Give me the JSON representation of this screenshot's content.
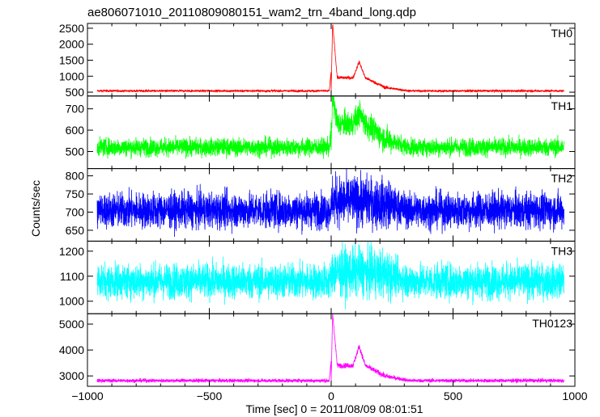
{
  "chart_data": {
    "type": "line",
    "title": "ae806071010_20110809080151_wam2_trn_4band_long.qdp",
    "xlabel": "Time [sec] 0 = 2011/08/09 08:01:51",
    "ylabel": "Counts/sec",
    "xlim": [
      -1000,
      1000
    ],
    "x_ticks": [
      -1000,
      -500,
      0,
      500,
      1000
    ],
    "x_tick_labels": [
      "−1000",
      "−500",
      "0",
      "500",
      "1000"
    ],
    "x_data_range": [
      -960,
      955
    ],
    "panels": [
      {
        "name": "TH0",
        "color": "#ff0000",
        "ylim": [
          380,
          2650
        ],
        "y_ticks": [
          500,
          1000,
          1500,
          2000,
          2500
        ],
        "y_tick_labels": [
          "500",
          "1000",
          "1500",
          "2000",
          "2500"
        ],
        "baseline": 540,
        "noise": 25,
        "burst": {
          "peak": 2650,
          "plateau": 950,
          "bump": 1450,
          "tail": 650
        }
      },
      {
        "name": "TH1",
        "color": "#00ff00",
        "ylim": [
          420,
          760
        ],
        "y_ticks": [
          500,
          600,
          700
        ],
        "y_tick_labels": [
          "500",
          "600",
          "700"
        ],
        "baseline": 520,
        "noise": 30,
        "burst": {
          "peak": 760,
          "plateau": 630,
          "bump": 680,
          "tail": 560
        }
      },
      {
        "name": "TH2",
        "color": "#0000ff",
        "ylim": [
          620,
          820
        ],
        "y_ticks": [
          650,
          700,
          750,
          800
        ],
        "y_tick_labels": [
          "650",
          "700",
          "750",
          "800"
        ],
        "baseline": 705,
        "noise": 35,
        "burst": {
          "peak": 735,
          "plateau": 730,
          "bump": 730,
          "tail": 722
        }
      },
      {
        "name": "TH3",
        "color": "#00ffff",
        "ylim": [
          950,
          1240
        ],
        "y_ticks": [
          1000,
          1100,
          1200
        ],
        "y_tick_labels": [
          "1000",
          "1100",
          "1200"
        ],
        "baseline": 1080,
        "noise": 50,
        "burst": {
          "peak": 1120,
          "plateau": 1115,
          "bump": 1120,
          "tail": 1110
        }
      },
      {
        "name": "TH0123",
        "color": "#ff00ff",
        "ylim": [
          2600,
          5400
        ],
        "y_ticks": [
          3000,
          4000,
          5000
        ],
        "y_tick_labels": [
          "3000",
          "4000",
          "5000"
        ],
        "baseline": 2820,
        "noise": 50,
        "burst": {
          "peak": 5400,
          "plateau": 3400,
          "bump": 4150,
          "tail": 3000
        }
      }
    ]
  }
}
